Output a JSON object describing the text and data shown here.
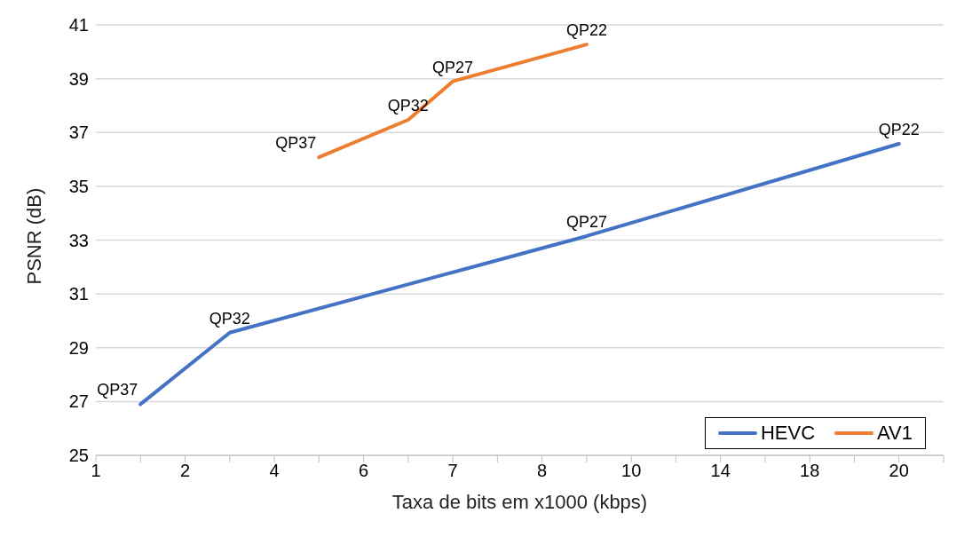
{
  "chart_data": {
    "type": "line",
    "xlabel": "Taxa de bits em x1000 (kbps)",
    "ylabel": "PSNR (dB)",
    "categories": [
      "1",
      null,
      "2",
      null,
      "4",
      null,
      "6",
      null,
      "7",
      null,
      "8",
      null,
      "10",
      null,
      "14",
      null,
      "18",
      null,
      "20",
      null
    ],
    "ylim": [
      25,
      41
    ],
    "yticks": [
      25,
      27,
      29,
      31,
      33,
      35,
      37,
      39,
      41
    ],
    "grid": "y",
    "legend": "bottom right",
    "marker": "none",
    "line_style": "solid",
    "series": [
      {
        "name": "HEVC",
        "color": "#4472c4",
        "values": [
          null,
          26.9,
          null,
          29.56,
          null,
          null,
          null,
          null,
          null,
          null,
          null,
          33.15,
          null,
          null,
          null,
          null,
          null,
          null,
          36.58,
          null
        ],
        "value_labels": [
          null,
          "QP37",
          null,
          "QP32",
          null,
          null,
          null,
          null,
          null,
          null,
          null,
          "QP27",
          null,
          null,
          null,
          null,
          null,
          null,
          "QP22",
          null
        ]
      },
      {
        "name": "AV1",
        "color": "#ed7d31",
        "values": [
          null,
          null,
          null,
          null,
          null,
          36.08,
          null,
          37.47,
          38.9,
          null,
          null,
          40.27,
          null,
          null,
          null,
          null,
          null,
          null,
          null,
          null
        ],
        "value_labels": [
          null,
          null,
          null,
          null,
          null,
          "QP37",
          null,
          "QP32",
          "QP27",
          null,
          null,
          "QP22",
          null,
          null,
          null,
          null,
          null,
          null,
          null,
          null
        ]
      }
    ]
  }
}
